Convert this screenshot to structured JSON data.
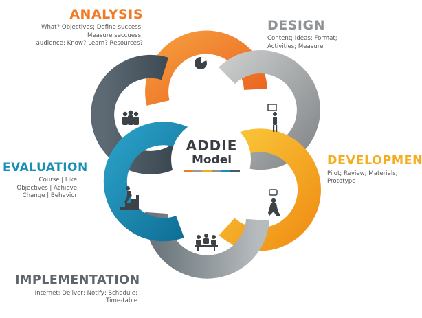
{
  "center": {
    "line1": "ADDIE",
    "line2": "Model"
  },
  "colors": {
    "analysis": "#f07a25",
    "design": "#9a9c9c",
    "development": "#f4ad1c",
    "implementation": "#8c9296",
    "evaluation": "#1a8fb5",
    "petal_dark": "#4a5862",
    "text_dark": "#3a3e44"
  },
  "phases": {
    "analysis": {
      "title": "ANALYSIS",
      "desc": [
        "What? Objectives; Define success;",
        "Measure seccuess;",
        "audience; Know? Learn? Resources?"
      ],
      "icon": "pie-chart-icon"
    },
    "design": {
      "title": "DESIGN",
      "desc": [
        "Content; Ideas: Format;",
        "Activities; Measure"
      ],
      "icon": "presenter-icon"
    },
    "development": {
      "title": "DEVELOPMENT",
      "desc": [
        "Pilot; Review; Materials;",
        "Prototype"
      ],
      "icon": "kneeling-person-icon"
    },
    "implementation": {
      "title": "IMPLEMENTATION",
      "desc": [
        "Internet; Deliver; Notify; Schedule;",
        "Time-table"
      ],
      "icon": "meeting-table-icon"
    },
    "evaluation": {
      "title": "EVALUATION",
      "desc": [
        "Course | Like",
        "Objectives | Achieve",
        "Change | Behavior"
      ],
      "icon": "climbing-stairs-icon"
    },
    "team": {
      "icon": "team-group-icon"
    }
  }
}
